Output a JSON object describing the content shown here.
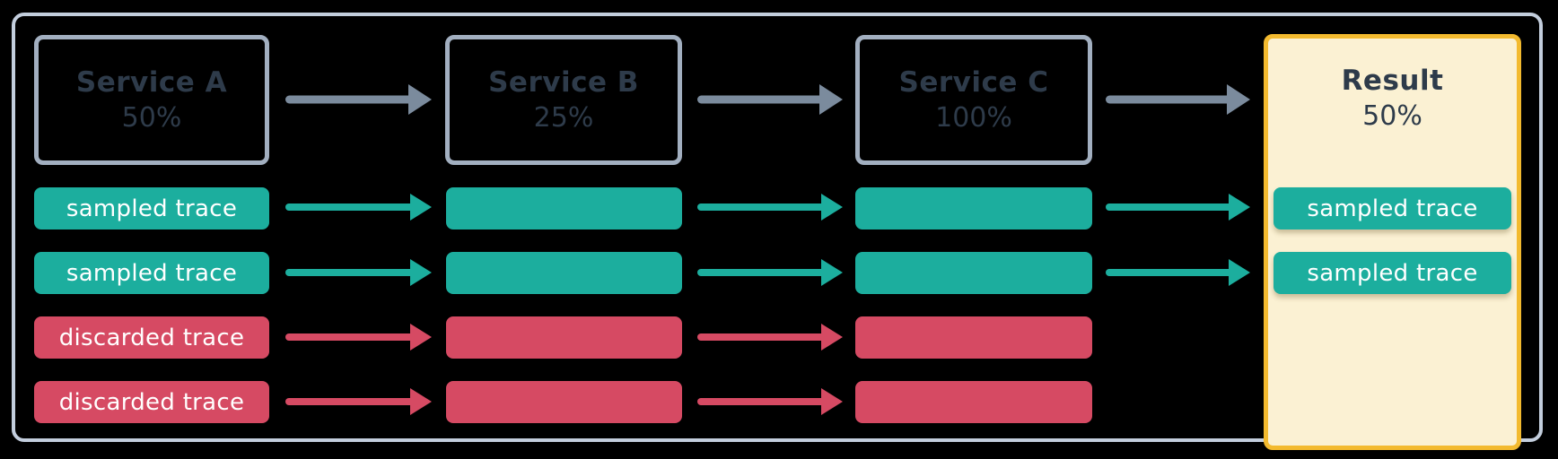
{
  "diagram": {
    "services": [
      {
        "label": "Service A",
        "sample_rate": "50%"
      },
      {
        "label": "Service B",
        "sample_rate": "25%"
      },
      {
        "label": "Service C",
        "sample_rate": "100%"
      }
    ],
    "result": {
      "label": "Result",
      "sample_rate": "50%",
      "traces": [
        "sampled trace",
        "sampled trace"
      ]
    },
    "trace_rows": [
      {
        "kind": "sampled",
        "label": "sampled trace"
      },
      {
        "kind": "sampled",
        "label": "sampled trace"
      },
      {
        "kind": "discarded",
        "label": "discarded trace"
      },
      {
        "kind": "discarded",
        "label": "discarded trace"
      }
    ],
    "colors": {
      "sampled": "#1cae9e",
      "discarded": "#d64a63",
      "arrow_gray": "#7b8b9d",
      "service_border": "#a2afc0",
      "frame_border": "#c3cedd",
      "result_fill": "#fbf1d3",
      "result_border": "#f3ba2f",
      "text": "#2e3b4a"
    }
  }
}
